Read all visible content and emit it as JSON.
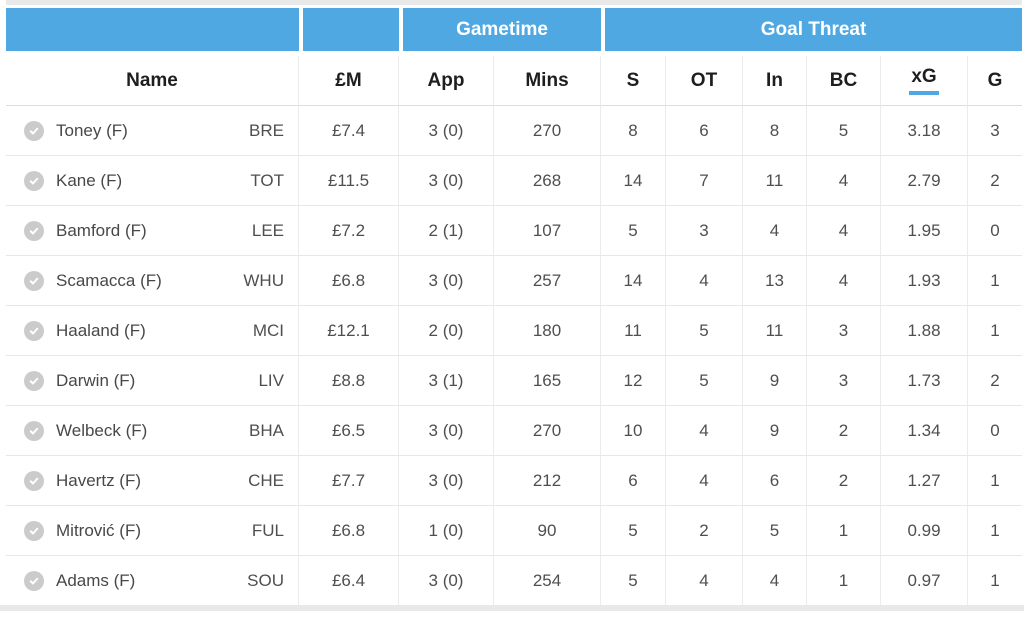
{
  "colors": {
    "header_blue": "#4fa8e1",
    "sort_underline": "#4fa8e1",
    "check_circle_gray": "#cbcbcb",
    "grid_line": "#ebebeb",
    "data_text": "#4f4f4f",
    "header_text": "#1e1e1e"
  },
  "table": {
    "group_headers": [
      {
        "label": "",
        "span": 1
      },
      {
        "label": "",
        "span": 1
      },
      {
        "label": "Gametime",
        "span": 2
      },
      {
        "label": "Goal Threat",
        "span": 6
      }
    ],
    "columns": [
      {
        "key": "name",
        "label": "Name",
        "sorted": false
      },
      {
        "key": "price",
        "label": "£M",
        "sorted": false
      },
      {
        "key": "app",
        "label": "App",
        "sorted": false
      },
      {
        "key": "mins",
        "label": "Mins",
        "sorted": false
      },
      {
        "key": "s",
        "label": "S",
        "sorted": false
      },
      {
        "key": "ot",
        "label": "OT",
        "sorted": false
      },
      {
        "key": "in",
        "label": "In",
        "sorted": false
      },
      {
        "key": "bc",
        "label": "BC",
        "sorted": false
      },
      {
        "key": "xg",
        "label": "xG",
        "sorted": true
      },
      {
        "key": "g",
        "label": "G",
        "sorted": false
      }
    ],
    "rows": [
      {
        "name": "Toney (F)",
        "team": "BRE",
        "price": "£7.4",
        "app": "3 (0)",
        "mins": "270",
        "s": "8",
        "ot": "6",
        "in": "8",
        "bc": "5",
        "xg": "3.18",
        "g": "3"
      },
      {
        "name": "Kane (F)",
        "team": "TOT",
        "price": "£11.5",
        "app": "3 (0)",
        "mins": "268",
        "s": "14",
        "ot": "7",
        "in": "11",
        "bc": "4",
        "xg": "2.79",
        "g": "2"
      },
      {
        "name": "Bamford (F)",
        "team": "LEE",
        "price": "£7.2",
        "app": "2 (1)",
        "mins": "107",
        "s": "5",
        "ot": "3",
        "in": "4",
        "bc": "4",
        "xg": "1.95",
        "g": "0"
      },
      {
        "name": "Scamacca (F)",
        "team": "WHU",
        "price": "£6.8",
        "app": "3 (0)",
        "mins": "257",
        "s": "14",
        "ot": "4",
        "in": "13",
        "bc": "4",
        "xg": "1.93",
        "g": "1"
      },
      {
        "name": "Haaland (F)",
        "team": "MCI",
        "price": "£12.1",
        "app": "2 (0)",
        "mins": "180",
        "s": "11",
        "ot": "5",
        "in": "11",
        "bc": "3",
        "xg": "1.88",
        "g": "1"
      },
      {
        "name": "Darwin (F)",
        "team": "LIV",
        "price": "£8.8",
        "app": "3 (1)",
        "mins": "165",
        "s": "12",
        "ot": "5",
        "in": "9",
        "bc": "3",
        "xg": "1.73",
        "g": "2"
      },
      {
        "name": "Welbeck (F)",
        "team": "BHA",
        "price": "£6.5",
        "app": "3 (0)",
        "mins": "270",
        "s": "10",
        "ot": "4",
        "in": "9",
        "bc": "2",
        "xg": "1.34",
        "g": "0"
      },
      {
        "name": "Havertz (F)",
        "team": "CHE",
        "price": "£7.7",
        "app": "3 (0)",
        "mins": "212",
        "s": "6",
        "ot": "4",
        "in": "6",
        "bc": "2",
        "xg": "1.27",
        "g": "1"
      },
      {
        "name": "Mitrović (F)",
        "team": "FUL",
        "price": "£6.8",
        "app": "1 (0)",
        "mins": "90",
        "s": "5",
        "ot": "2",
        "in": "5",
        "bc": "1",
        "xg": "0.99",
        "g": "1"
      },
      {
        "name": "Adams (F)",
        "team": "SOU",
        "price": "£6.4",
        "app": "3 (0)",
        "mins": "254",
        "s": "5",
        "ot": "4",
        "in": "4",
        "bc": "1",
        "xg": "0.97",
        "g": "1"
      }
    ]
  }
}
